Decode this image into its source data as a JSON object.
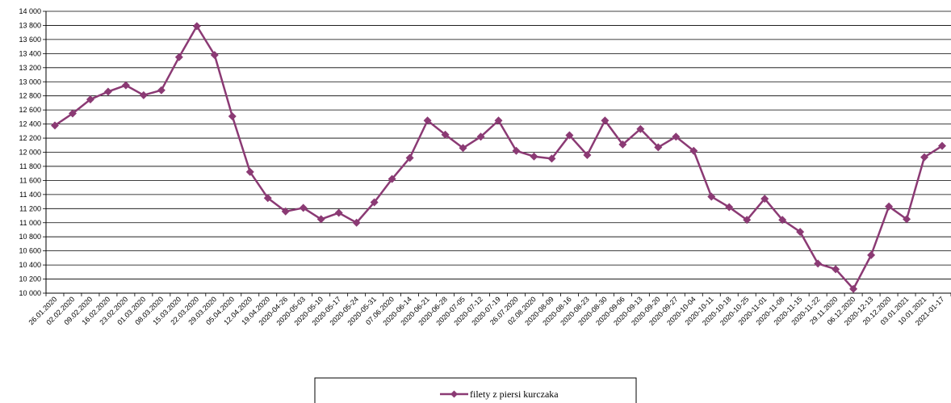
{
  "chart_data": {
    "type": "line",
    "title": "",
    "xlabel": "",
    "ylabel": "",
    "ylim": [
      10000,
      14000
    ],
    "ytick_step": 200,
    "y_tick_labels": [
      "10 000",
      "10 200",
      "10 400",
      "10 600",
      "10 800",
      "11 000",
      "11 200",
      "11 400",
      "11 600",
      "11 800",
      "12 000",
      "12 200",
      "12 400",
      "12 600",
      "12 800",
      "13 000",
      "13 200",
      "13 400",
      "13 600",
      "13 800",
      "14 000"
    ],
    "grid": "horizontal",
    "legend": "bottom-center",
    "line_color": "#8B3A74",
    "categories": [
      "26.01.2020",
      "02.02.2020",
      "09.02.2020",
      "16.02.2020",
      "23.02.2020",
      "01.03.2020",
      "08.03.2020",
      "15.03.2020",
      "22.03.2020",
      "29.03.2020",
      "05.04.2020",
      "12.04.2020",
      "19.04.2020",
      "2020-04-26",
      "2020-05-03",
      "2020-05-10",
      "2020-05-17",
      "2020-05-24",
      "2020-05-31",
      "07.06.2020",
      "2020-06-14",
      "2020-06-21",
      "2020-06-28",
      "2020-07-05",
      "2020-07-12",
      "2020-07-19",
      "26.07.2020",
      "02.08.2020",
      "2020-08-09",
      "2020-08-16",
      "2020-08-23",
      "2020-08-30",
      "2020-09-06",
      "2020-09-13",
      "2020-09-20",
      "2020-09-27",
      "2020-10-04",
      "2020-10-11",
      "2020-10-18",
      "2020-10-25",
      "2020-11-01",
      "2020-11-08",
      "2020-11-15",
      "2020-11-22",
      "29.11.2020",
      "06.12.2020",
      "2020-12-13",
      "20.12.2020",
      "03.01.2021",
      "10.01.2021",
      "2021-01-17"
    ],
    "series": [
      {
        "name": "filety z piersi kurczaka",
        "values": [
          12380,
          12550,
          12750,
          12860,
          12950,
          12810,
          12880,
          13350,
          13790,
          13380,
          12510,
          11720,
          11350,
          11160,
          11210,
          11050,
          11140,
          11000,
          11290,
          11620,
          11920,
          12450,
          12250,
          12060,
          12220,
          12450,
          12020,
          11940,
          11910,
          12240,
          11960,
          12450,
          12110,
          12330,
          12070,
          12220,
          12020,
          11370,
          11220,
          11040,
          11340,
          11040,
          10870,
          10420,
          10340,
          10060,
          10540,
          11230,
          11050,
          11930,
          12090
        ]
      }
    ]
  }
}
